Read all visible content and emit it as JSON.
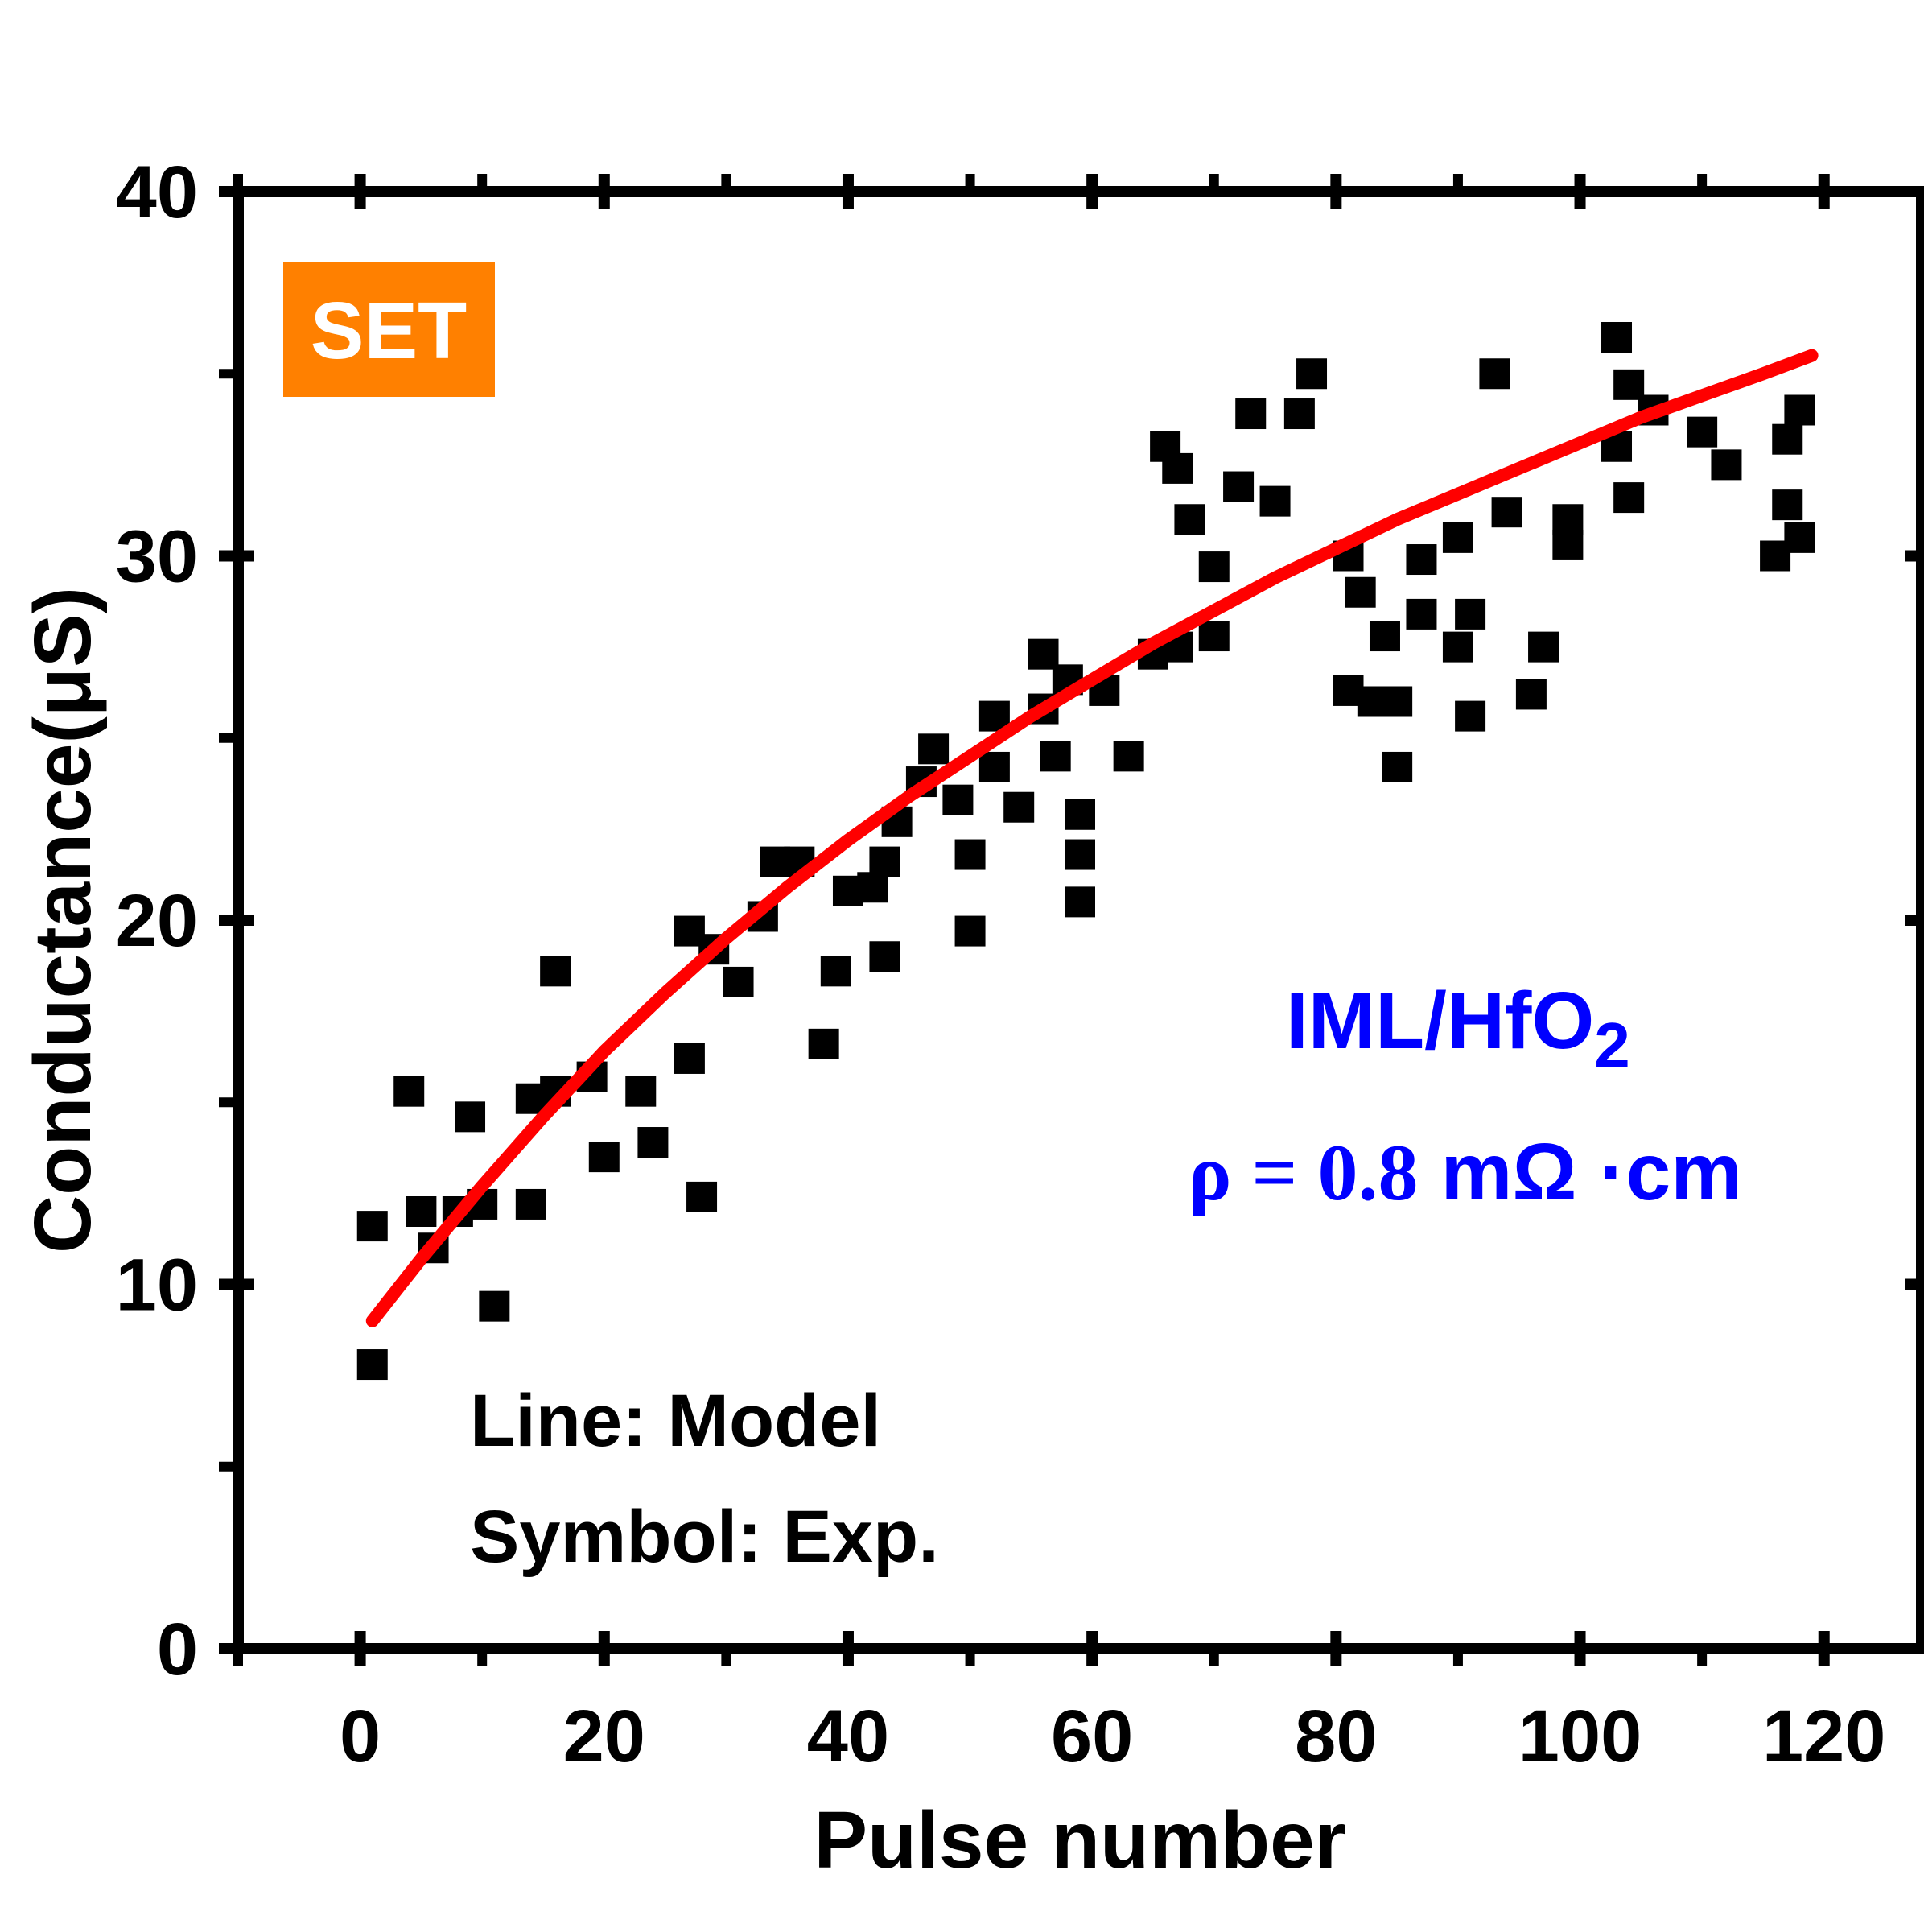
{
  "chart_data": {
    "type": "scatter",
    "xlabel": "Pulse number",
    "ylabel": "Conductance(μS)",
    "xlim": [
      -10,
      128
    ],
    "ylim": [
      0,
      40
    ],
    "xticks": [
      0,
      20,
      40,
      60,
      80,
      100,
      120
    ],
    "yticks": [
      0,
      10,
      20,
      30,
      40
    ],
    "x_tick_labels": [
      "0",
      "20",
      "40",
      "60",
      "80",
      "100",
      "120"
    ],
    "y_tick_labels": [
      "0",
      "10",
      "20",
      "30",
      "40"
    ],
    "badge": {
      "text": "SET",
      "color": "#ff8000"
    },
    "annotations": {
      "line1": "Line: Model",
      "line2": "Symbol: Exp.",
      "material": "IML/HfO",
      "material_sub": "2",
      "rho_symbol": "ρ = 0.8",
      "rho_unit": "mΩ ·cm",
      "color": "#0000ff"
    },
    "series": [
      {
        "type": "scatter",
        "marker": "square",
        "color": "#000000",
        "points": [
          [
            1,
            7.8
          ],
          [
            1,
            11.6
          ],
          [
            4,
            15.3
          ],
          [
            5,
            12.0
          ],
          [
            6,
            11.0
          ],
          [
            8,
            12.0
          ],
          [
            9,
            14.6
          ],
          [
            10,
            12.2
          ],
          [
            11,
            9.4
          ],
          [
            14,
            12.2
          ],
          [
            14,
            15.1
          ],
          [
            16,
            18.6
          ],
          [
            16,
            15.3
          ],
          [
            19,
            15.7
          ],
          [
            20,
            13.5
          ],
          [
            23,
            15.3
          ],
          [
            24,
            13.9
          ],
          [
            27,
            19.7
          ],
          [
            27,
            16.2
          ],
          [
            28,
            12.4
          ],
          [
            29,
            19.2
          ],
          [
            31,
            18.3
          ],
          [
            33,
            20.1
          ],
          [
            34,
            21.6
          ],
          [
            36,
            21.6
          ],
          [
            38,
            16.6
          ],
          [
            39,
            18.6
          ],
          [
            40,
            20.8
          ],
          [
            42,
            20.9
          ],
          [
            43,
            21.6
          ],
          [
            43,
            19.0
          ],
          [
            44,
            22.7
          ],
          [
            46,
            23.8
          ],
          [
            47,
            24.7
          ],
          [
            49,
            23.3
          ],
          [
            50,
            21.8
          ],
          [
            50,
            19.7
          ],
          [
            52,
            25.6
          ],
          [
            52,
            24.2
          ],
          [
            54,
            23.1
          ],
          [
            56,
            27.3
          ],
          [
            56,
            25.8
          ],
          [
            57,
            24.5
          ],
          [
            58,
            26.6
          ],
          [
            59,
            22.9
          ],
          [
            59,
            21.8
          ],
          [
            59,
            20.5
          ],
          [
            61,
            26.3
          ],
          [
            63,
            24.5
          ],
          [
            65,
            27.3
          ],
          [
            66,
            33.0
          ],
          [
            67,
            27.5
          ],
          [
            67,
            32.4
          ],
          [
            68,
            31.0
          ],
          [
            70,
            27.8
          ],
          [
            70,
            29.7
          ],
          [
            72,
            31.9
          ],
          [
            73,
            33.9
          ],
          [
            75,
            31.5
          ],
          [
            77,
            33.9
          ],
          [
            78,
            35.0
          ],
          [
            81,
            30.0
          ],
          [
            81,
            26.3
          ],
          [
            82,
            29.0
          ],
          [
            83,
            26.0
          ],
          [
            84,
            27.8
          ],
          [
            85,
            26.0
          ],
          [
            85,
            24.2
          ],
          [
            87,
            29.9
          ],
          [
            87,
            28.4
          ],
          [
            90,
            30.5
          ],
          [
            90,
            27.5
          ],
          [
            91,
            28.4
          ],
          [
            91,
            25.6
          ],
          [
            93,
            35.0
          ],
          [
            94,
            31.2
          ],
          [
            96,
            26.2
          ],
          [
            97,
            27.5
          ],
          [
            99,
            31.0
          ],
          [
            99,
            30.3
          ],
          [
            103,
            36.0
          ],
          [
            103,
            33.0
          ],
          [
            104,
            31.6
          ],
          [
            104,
            34.7
          ],
          [
            106,
            34.0
          ],
          [
            110,
            33.4
          ],
          [
            112,
            32.5
          ],
          [
            116,
            30.0
          ],
          [
            117,
            33.2
          ],
          [
            117,
            31.4
          ],
          [
            118,
            30.5
          ],
          [
            118,
            34.0
          ]
        ]
      },
      {
        "type": "line",
        "color": "#ff0000",
        "points": [
          [
            1,
            9.0
          ],
          [
            5,
            10.7
          ],
          [
            10,
            12.7
          ],
          [
            15,
            14.6
          ],
          [
            20,
            16.4
          ],
          [
            25,
            18.0
          ],
          [
            30,
            19.5
          ],
          [
            35,
            20.9
          ],
          [
            40,
            22.2
          ],
          [
            45,
            23.4
          ],
          [
            50,
            24.5
          ],
          [
            55,
            25.6
          ],
          [
            60,
            26.6
          ],
          [
            65,
            27.6
          ],
          [
            70,
            28.5
          ],
          [
            75,
            29.4
          ],
          [
            80,
            30.2
          ],
          [
            85,
            31.0
          ],
          [
            90,
            31.7
          ],
          [
            95,
            32.4
          ],
          [
            100,
            33.1
          ],
          [
            105,
            33.8
          ],
          [
            110,
            34.4
          ],
          [
            115,
            35.0
          ],
          [
            119,
            35.5
          ]
        ]
      }
    ]
  }
}
